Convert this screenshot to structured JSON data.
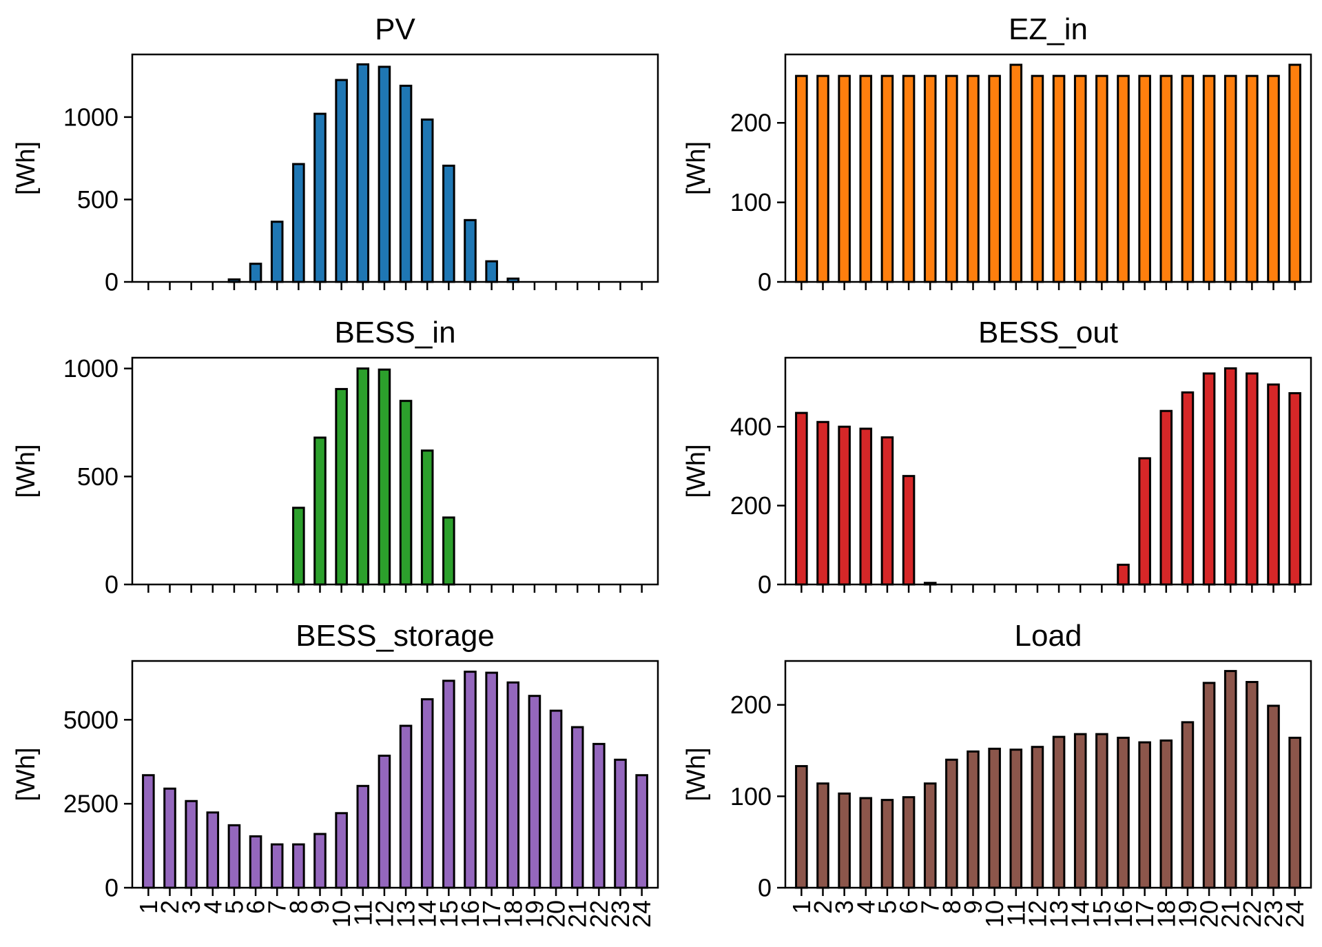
{
  "chart_data": [
    {
      "type": "bar",
      "title": "PV",
      "ylabel": "[Wh]",
      "color": "#1f77b4",
      "ylim": [
        0,
        1380
      ],
      "yticks": [
        0,
        500,
        1000
      ],
      "categories": [
        "1",
        "2",
        "3",
        "4",
        "5",
        "6",
        "7",
        "8",
        "9",
        "10",
        "11",
        "12",
        "13",
        "14",
        "15",
        "16",
        "17",
        "18",
        "19",
        "20",
        "21",
        "22",
        "23",
        "24"
      ],
      "values": [
        0,
        0,
        0,
        0,
        15,
        110,
        365,
        715,
        1020,
        1225,
        1320,
        1305,
        1190,
        985,
        705,
        375,
        125,
        20,
        0,
        0,
        0,
        0,
        0,
        0
      ],
      "show_xticklabels": false
    },
    {
      "type": "bar",
      "title": "EZ_in",
      "ylabel": "[Wh]",
      "color": "#ff7f0e",
      "ylim": [
        0,
        286
      ],
      "yticks": [
        0,
        100,
        200
      ],
      "categories": [
        "1",
        "2",
        "3",
        "4",
        "5",
        "6",
        "7",
        "8",
        "9",
        "10",
        "11",
        "12",
        "13",
        "14",
        "15",
        "16",
        "17",
        "18",
        "19",
        "20",
        "21",
        "22",
        "23",
        "24"
      ],
      "values": [
        259,
        259,
        259,
        259,
        259,
        259,
        259,
        259,
        259,
        259,
        273,
        259,
        259,
        259,
        259,
        259,
        259,
        259,
        259,
        259,
        259,
        259,
        259,
        273
      ],
      "show_xticklabels": false
    },
    {
      "type": "bar",
      "title": "BESS_in",
      "ylabel": "[Wh]",
      "color": "#2ca02c",
      "ylim": [
        0,
        1050
      ],
      "yticks": [
        0,
        500,
        1000
      ],
      "categories": [
        "1",
        "2",
        "3",
        "4",
        "5",
        "6",
        "7",
        "8",
        "9",
        "10",
        "11",
        "12",
        "13",
        "14",
        "15",
        "16",
        "17",
        "18",
        "19",
        "20",
        "21",
        "22",
        "23",
        "24"
      ],
      "values": [
        0,
        0,
        0,
        0,
        0,
        0,
        0,
        355,
        680,
        905,
        1000,
        995,
        850,
        620,
        310,
        0,
        0,
        0,
        0,
        0,
        0,
        0,
        0,
        0
      ],
      "show_xticklabels": false
    },
    {
      "type": "bar",
      "title": "BESS_out",
      "ylabel": "[Wh]",
      "color": "#d62728",
      "ylim": [
        0,
        575
      ],
      "yticks": [
        0,
        200,
        400
      ],
      "categories": [
        "1",
        "2",
        "3",
        "4",
        "5",
        "6",
        "7",
        "8",
        "9",
        "10",
        "11",
        "12",
        "13",
        "14",
        "15",
        "16",
        "17",
        "18",
        "19",
        "20",
        "21",
        "22",
        "23",
        "24"
      ],
      "values": [
        435,
        412,
        400,
        395,
        373,
        275,
        4,
        0,
        0,
        0,
        0,
        0,
        0,
        0,
        0,
        50,
        320,
        440,
        487,
        535,
        548,
        535,
        507,
        485
      ],
      "show_xticklabels": false
    },
    {
      "type": "bar",
      "title": "BESS_storage",
      "ylabel": "[Wh]",
      "color": "#9467bd",
      "ylim": [
        0,
        6750
      ],
      "yticks": [
        0,
        2500,
        5000
      ],
      "categories": [
        "1",
        "2",
        "3",
        "4",
        "5",
        "6",
        "7",
        "8",
        "9",
        "10",
        "11",
        "12",
        "13",
        "14",
        "15",
        "16",
        "17",
        "18",
        "19",
        "20",
        "21",
        "22",
        "23",
        "24"
      ],
      "values": [
        3350,
        2950,
        2580,
        2240,
        1860,
        1530,
        1290,
        1290,
        1600,
        2220,
        3030,
        3930,
        4820,
        5610,
        6160,
        6430,
        6400,
        6110,
        5710,
        5270,
        4780,
        4280,
        3810,
        3350
      ],
      "show_xticklabels": true
    },
    {
      "type": "bar",
      "title": "Load",
      "ylabel": "[Wh]",
      "color": "#8c564b",
      "ylim": [
        0,
        248
      ],
      "yticks": [
        0,
        100,
        200
      ],
      "categories": [
        "1",
        "2",
        "3",
        "4",
        "5",
        "6",
        "7",
        "8",
        "9",
        "10",
        "11",
        "12",
        "13",
        "14",
        "15",
        "16",
        "17",
        "18",
        "19",
        "20",
        "21",
        "22",
        "23",
        "24"
      ],
      "values": [
        133,
        114,
        103,
        98,
        96,
        99,
        114,
        140,
        149,
        152,
        151,
        154,
        165,
        168,
        168,
        164,
        159,
        161,
        181,
        224,
        237,
        225,
        199,
        164
      ],
      "show_xticklabels": true
    }
  ]
}
